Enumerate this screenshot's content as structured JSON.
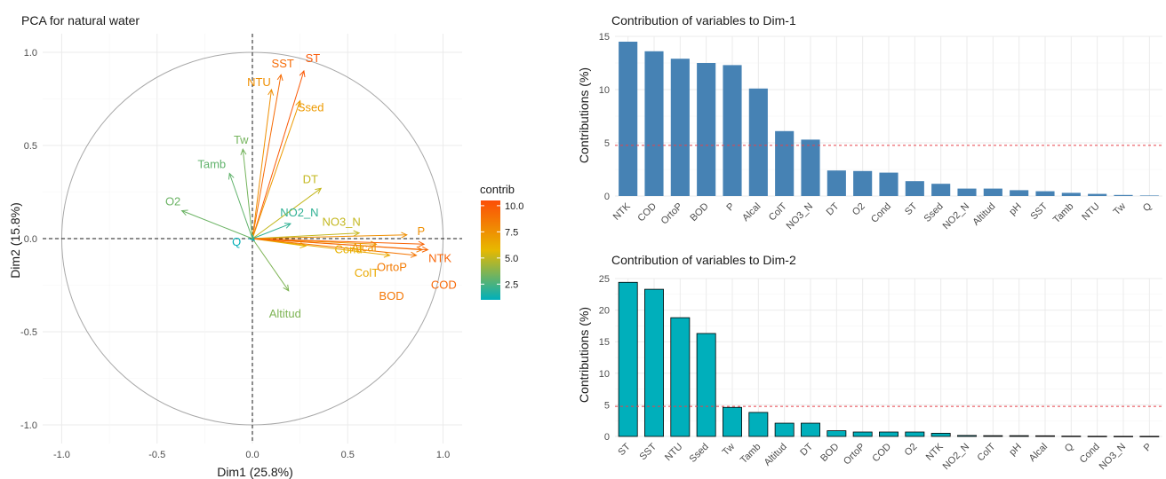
{
  "chart_data": [
    {
      "type": "scatter",
      "title": "PCA for natural water",
      "xlabel": "Dim1 (25.8%)",
      "ylabel": "Dim2 (15.8%)",
      "xlim": [
        -1.1,
        1.1
      ],
      "ylim": [
        -1.1,
        1.1
      ],
      "xticks": [
        "-1.0",
        "-0.5",
        "0.0",
        "0.5",
        "1.0"
      ],
      "yticks": [
        "1.0",
        "0.5",
        "0.0",
        "-0.5",
        "-1.0"
      ],
      "legend": {
        "title": "contrib",
        "ticks": [
          "10.0",
          "7.5",
          "5.0",
          "2.5"
        ],
        "tick_values": [
          10.0,
          7.5,
          5.0,
          2.5
        ],
        "range": [
          1.0,
          10.5
        ],
        "placement": "right"
      },
      "colors": {
        "low": "#00AFBB",
        "mid": "#E7B800",
        "high": "#FC4E07"
      },
      "variables": [
        {
          "name": "SST",
          "x": 0.15,
          "y": 0.88,
          "contrib": 9.2
        },
        {
          "name": "ST",
          "x": 0.27,
          "y": 0.9,
          "contrib": 10.0
        },
        {
          "name": "NTU",
          "x": 0.1,
          "y": 0.8,
          "contrib": 7.6
        },
        {
          "name": "Ssed",
          "x": 0.25,
          "y": 0.74,
          "contrib": 7.1
        },
        {
          "name": "Tw",
          "x": -0.05,
          "y": 0.48,
          "contrib": 3.4
        },
        {
          "name": "Tamb",
          "x": -0.12,
          "y": 0.35,
          "contrib": 3.0
        },
        {
          "name": "O2",
          "x": -0.37,
          "y": 0.15,
          "contrib": 3.2
        },
        {
          "name": "DT",
          "x": 0.36,
          "y": 0.27,
          "contrib": 5.0
        },
        {
          "name": "NO2_N",
          "x": 0.2,
          "y": 0.08,
          "contrib": 2.0
        },
        {
          "name": "NO3_N",
          "x": 0.56,
          "y": 0.03,
          "contrib": 5.0
        },
        {
          "name": "P",
          "x": 0.81,
          "y": 0.02,
          "contrib": 7.6
        },
        {
          "name": "Alcal",
          "x": 0.65,
          "y": -0.03,
          "contrib": 7.3
        },
        {
          "name": "Cond",
          "x": 0.28,
          "y": -0.04,
          "contrib": 6.0
        },
        {
          "name": "ColT",
          "x": 0.72,
          "y": -0.09,
          "contrib": 6.4
        },
        {
          "name": "OrtoP",
          "x": 0.89,
          "y": -0.06,
          "contrib": 8.5
        },
        {
          "name": "NTK",
          "x": 0.9,
          "y": -0.03,
          "contrib": 9.5
        },
        {
          "name": "BOD",
          "x": 0.86,
          "y": -0.09,
          "contrib": 8.7
        },
        {
          "name": "COD",
          "x": 0.92,
          "y": -0.06,
          "contrib": 9.4
        },
        {
          "name": "Altitud",
          "x": 0.19,
          "y": -0.28,
          "contrib": 3.6
        },
        {
          "name": "Q",
          "x": 0.01,
          "y": -0.01,
          "contrib": 1.1
        }
      ]
    },
    {
      "type": "bar",
      "title": "Contribution of variables to Dim-1",
      "xlabel": "",
      "ylabel": "Contributions (%)",
      "ylim": [
        0,
        15
      ],
      "yticks": [
        0,
        5,
        10,
        15
      ],
      "reference_line": 4.76,
      "bar_color": "#4682B4",
      "categories": [
        "NTK",
        "COD",
        "OrtoP",
        "BOD",
        "P",
        "Alcal",
        "ColT",
        "NO3_N",
        "DT",
        "O2",
        "Cond",
        "ST",
        "Ssed",
        "NO2_N",
        "Altitud",
        "pH",
        "SST",
        "Tamb",
        "NTU",
        "Tw",
        "Q"
      ],
      "values": [
        14.5,
        13.6,
        12.9,
        12.5,
        12.3,
        10.1,
        6.1,
        5.3,
        2.4,
        2.35,
        2.2,
        1.4,
        1.15,
        0.7,
        0.7,
        0.55,
        0.45,
        0.3,
        0.2,
        0.1,
        0.05
      ]
    },
    {
      "type": "bar",
      "title": "Contribution of variables to Dim-2",
      "xlabel": "",
      "ylabel": "Contributions (%)",
      "ylim": [
        0,
        25
      ],
      "yticks": [
        0,
        5,
        10,
        15,
        20,
        25
      ],
      "reference_line": 4.76,
      "bar_color": "#00AFBB",
      "bar_outline": "#000000",
      "categories": [
        "ST",
        "SST",
        "NTU",
        "Ssed",
        "Tw",
        "Tamb",
        "Altitud",
        "DT",
        "BOD",
        "OrtoP",
        "COD",
        "O2",
        "NTK",
        "NO2_N",
        "ColT",
        "pH",
        "Alcal",
        "Q",
        "Cond",
        "NO3_N",
        "P"
      ],
      "values": [
        24.4,
        23.3,
        18.8,
        16.3,
        4.6,
        3.8,
        2.1,
        2.1,
        0.9,
        0.7,
        0.7,
        0.7,
        0.5,
        0.15,
        0.12,
        0.12,
        0.1,
        0.05,
        0.03,
        0.02,
        0.02
      ]
    }
  ]
}
